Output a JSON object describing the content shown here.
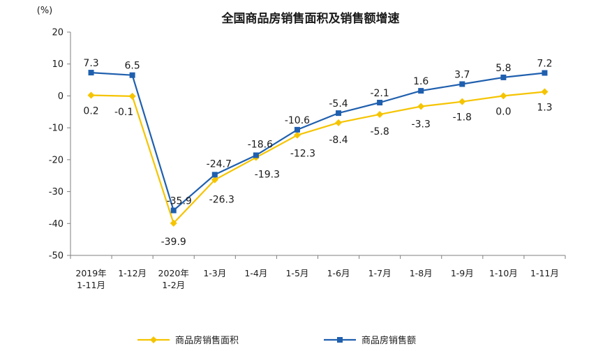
{
  "chart_data": {
    "type": "line",
    "title": "全国商品房销售面积及销售额增速",
    "ylabel": "(%)",
    "ylim": [
      -50,
      20
    ],
    "yticks": [
      20,
      10,
      0,
      -10,
      -20,
      -30,
      -40,
      -50
    ],
    "grid": false,
    "legend_position": "bottom",
    "categories": [
      [
        "2019年",
        "1-11月"
      ],
      [
        "1-12月"
      ],
      [
        "2020年",
        "1-2月"
      ],
      [
        "1-3月"
      ],
      [
        "1-4月"
      ],
      [
        "1-5月"
      ],
      [
        "1-6月"
      ],
      [
        "1-7月"
      ],
      [
        "1-8月"
      ],
      [
        "1-9月"
      ],
      [
        "1-10月"
      ],
      [
        "1-11月"
      ]
    ],
    "series": [
      {
        "name": "商品房销售面积",
        "color": "#f5c400",
        "marker": "diamond",
        "values": [
          0.2,
          -0.1,
          -39.9,
          -26.3,
          -19.3,
          -12.3,
          -8.4,
          -5.8,
          -3.3,
          -1.8,
          0.0,
          1.3
        ],
        "labels": [
          "0.2",
          "-0.1",
          "-39.9",
          "-26.3",
          "-19.3",
          "-12.3",
          "-8.4",
          "-5.8",
          "-3.3",
          "-1.8",
          "0.0",
          "1.3"
        ]
      },
      {
        "name": "商品房销售额",
        "color": "#1f5fae",
        "marker": "square",
        "values": [
          7.3,
          6.5,
          -35.9,
          -24.7,
          -18.6,
          -10.6,
          -5.4,
          -2.1,
          1.6,
          3.7,
          5.8,
          7.2
        ],
        "labels": [
          "7.3",
          "6.5",
          "-35.9",
          "-24.7",
          "-18.6",
          "-10.6",
          "-5.4",
          "-2.1",
          "1.6",
          "3.7",
          "5.8",
          "7.2"
        ]
      }
    ]
  }
}
